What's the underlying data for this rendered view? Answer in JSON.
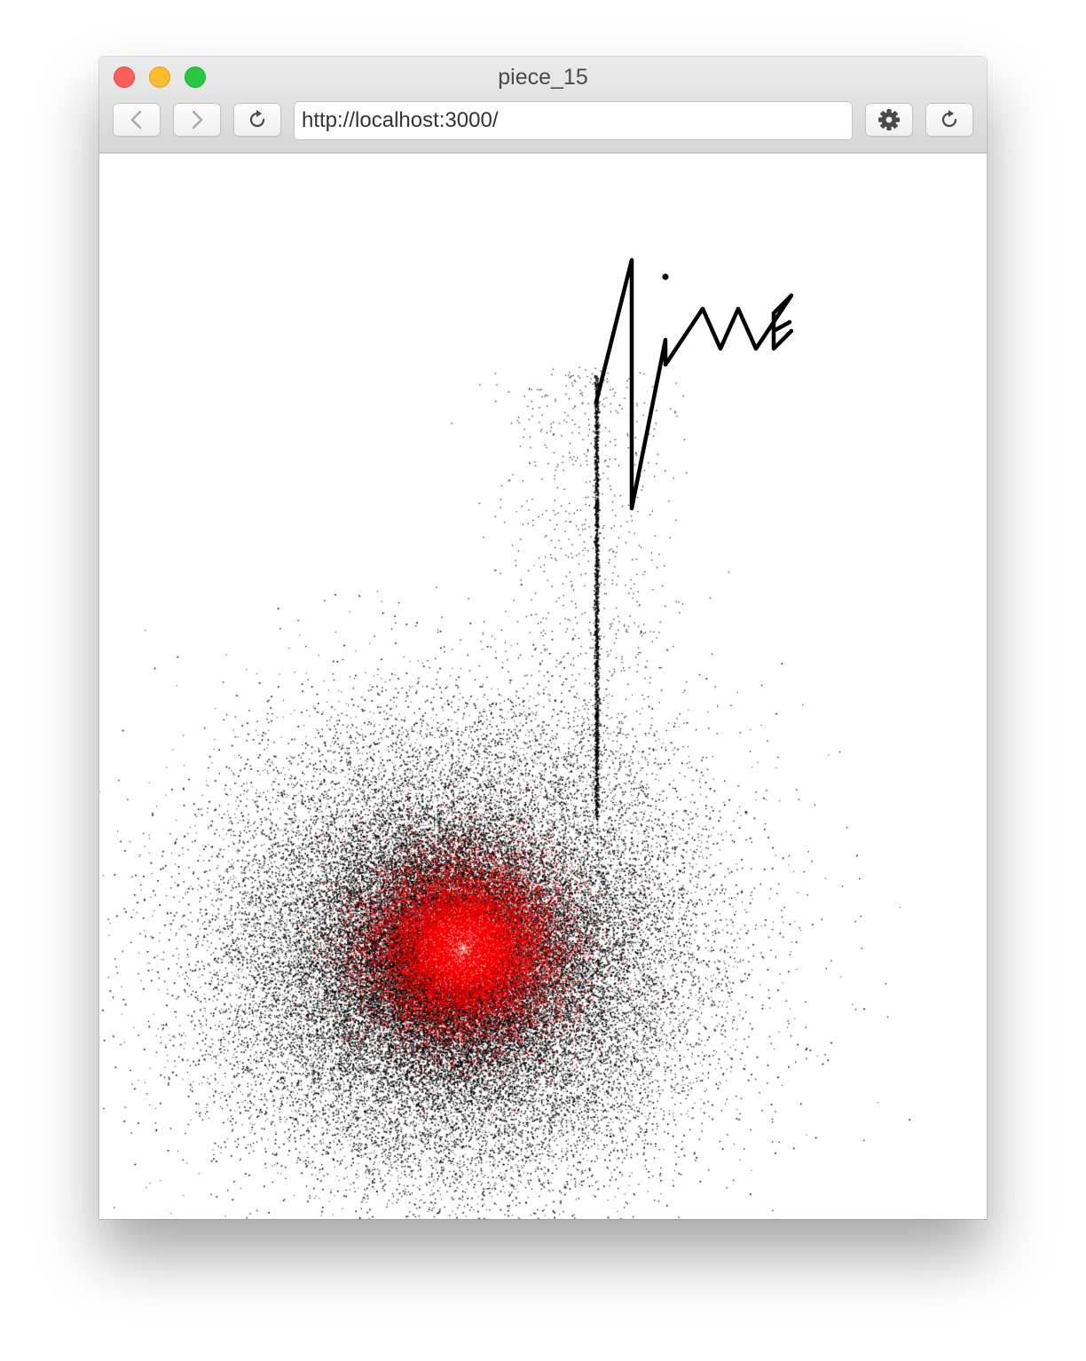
{
  "window": {
    "title": "piece_15"
  },
  "toolbar": {
    "url": "http://localhost:3000/",
    "buttons": [
      {
        "name": "back-button",
        "icon": "chevron-left-icon"
      },
      {
        "name": "forward-button",
        "icon": "chevron-right-icon"
      },
      {
        "name": "reload-button",
        "icon": "reload-icon"
      },
      {
        "name": "settings-button",
        "icon": "gear-icon"
      },
      {
        "name": "refresh-button",
        "icon": "reload-icon"
      }
    ]
  },
  "artwork": {
    "background": "#ffffff",
    "particle_colors": [
      "#000000",
      "#ff0000"
    ],
    "signature_color": "#000000"
  }
}
